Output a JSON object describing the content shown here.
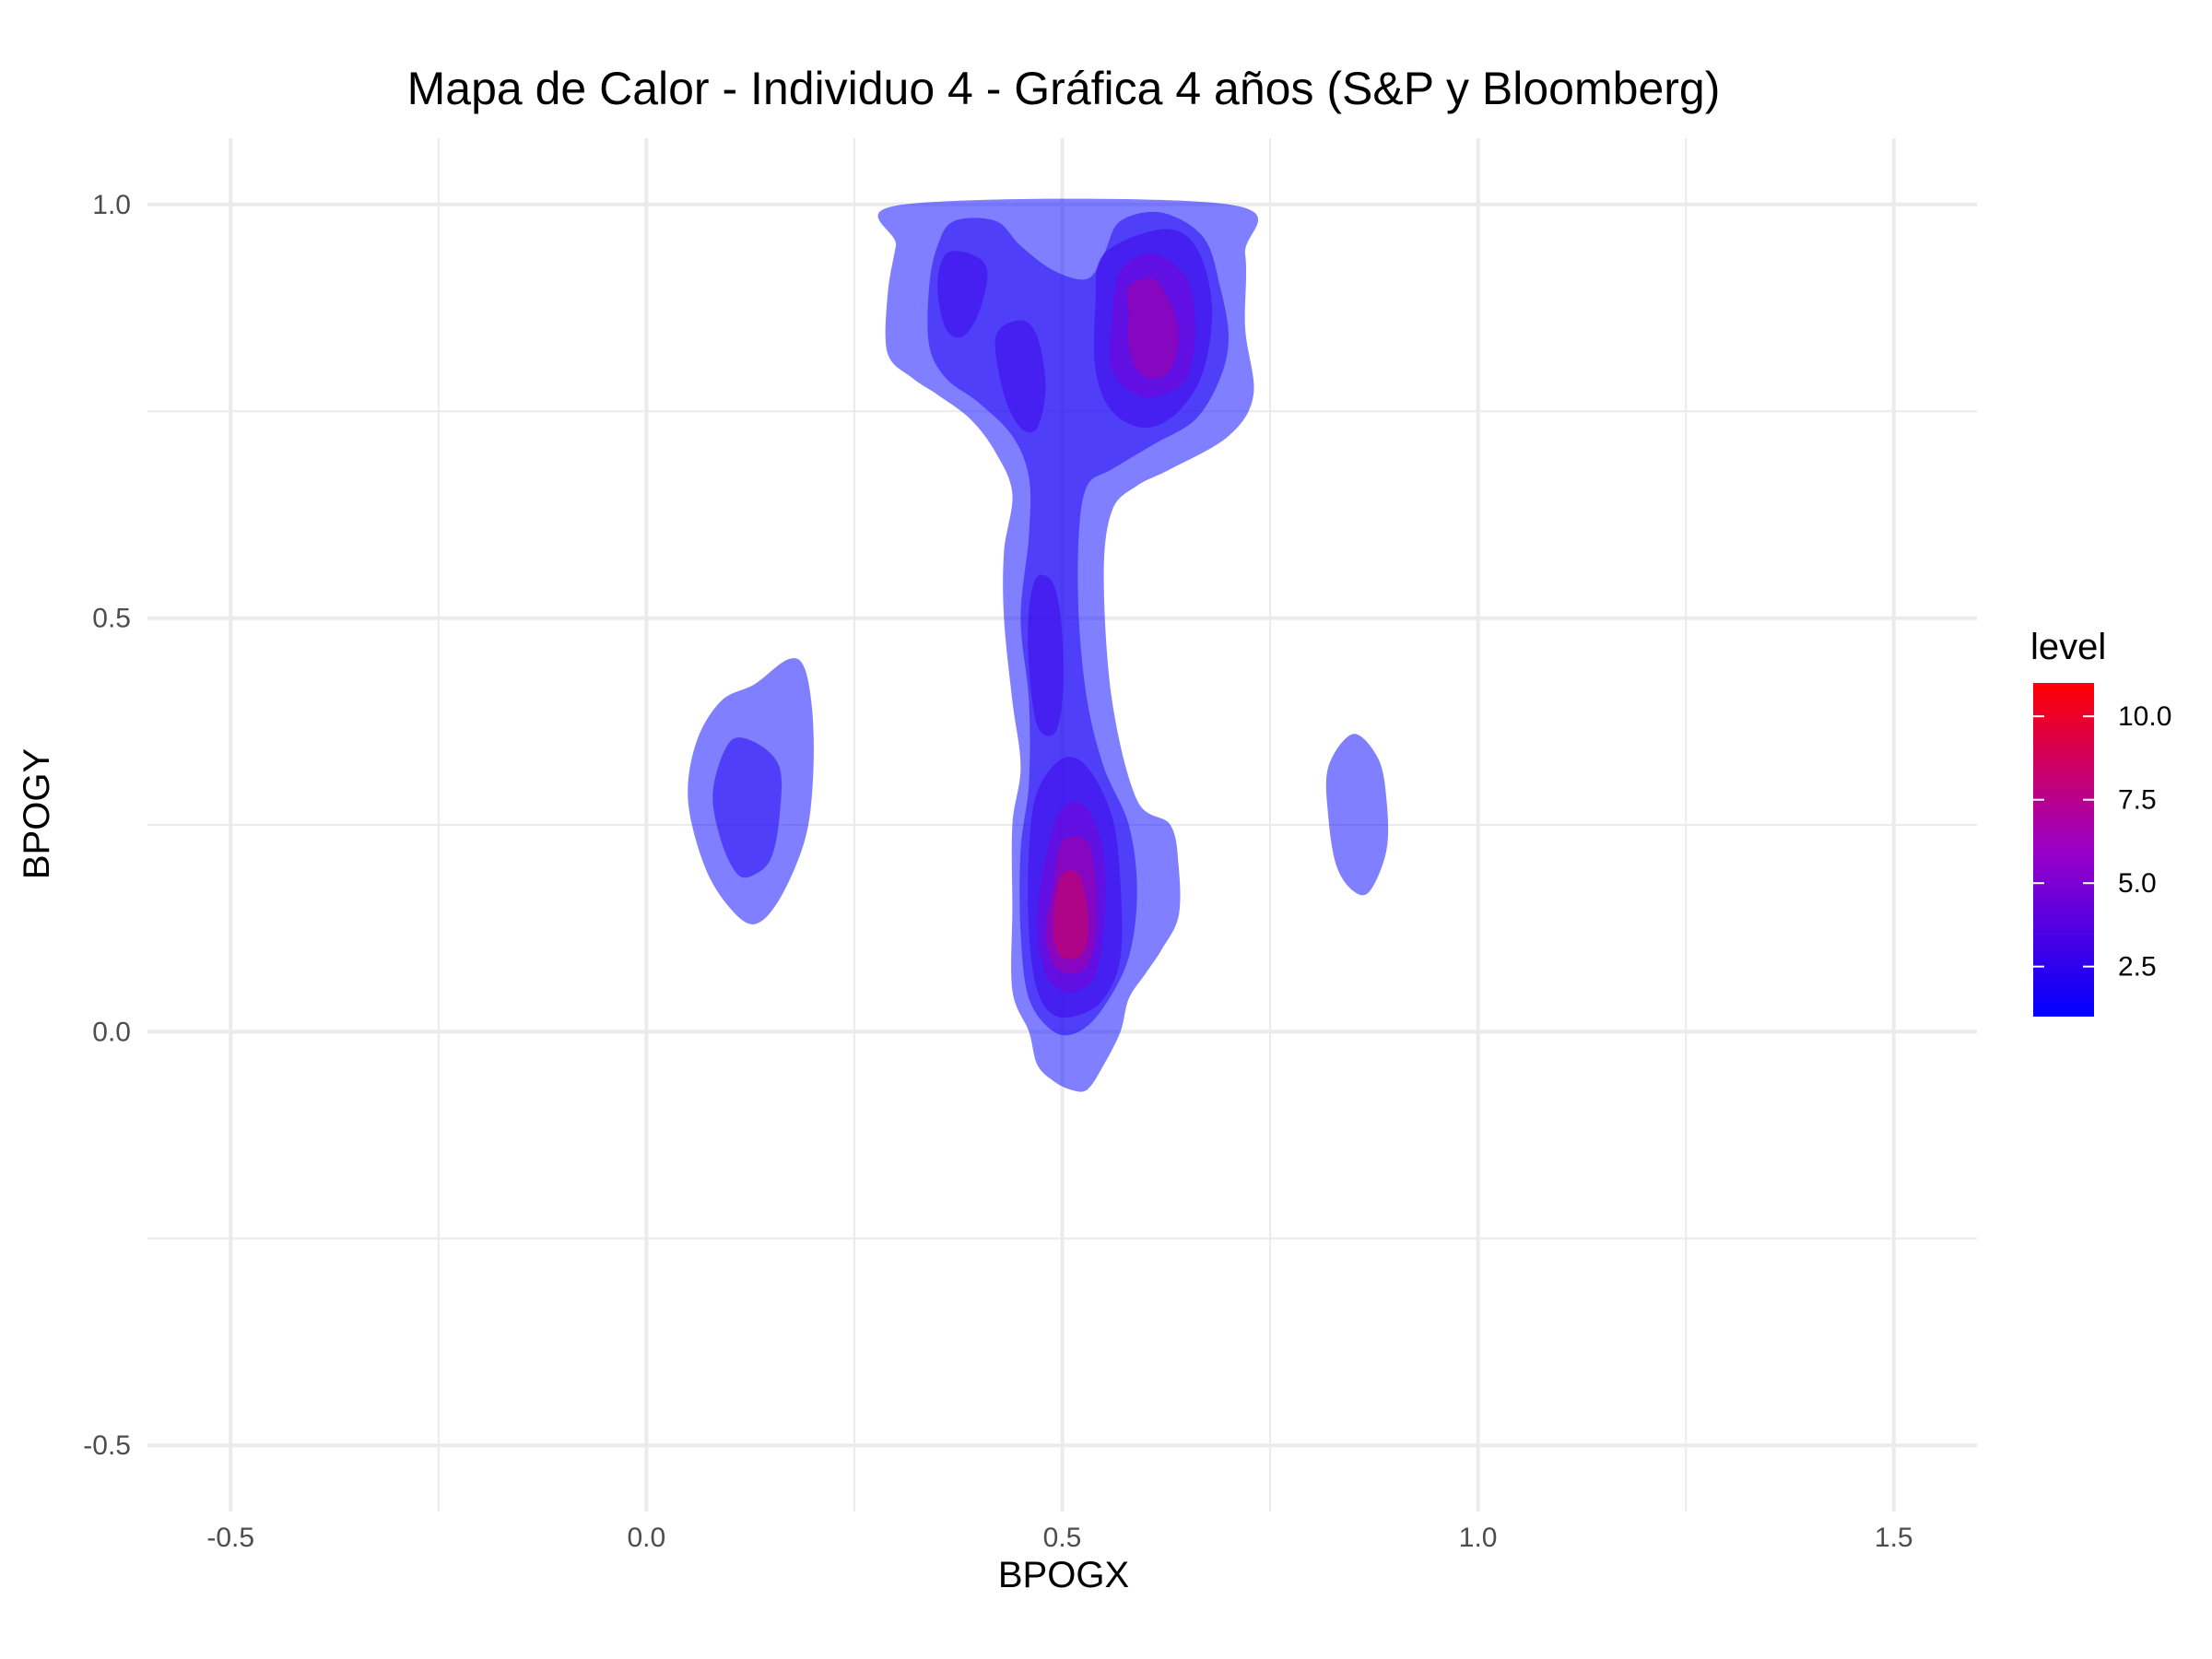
{
  "chart_data": {
    "type": "heatmap",
    "subtype": "2d-density-filled-contour",
    "title": "Mapa de Calor - Individuo 4 - Gráfica 4 años (S&P y Bloomberg)",
    "xlabel": "BPOGX",
    "ylabel": "BPOGY",
    "xlim": [
      -0.6,
      1.6
    ],
    "ylim": [
      -0.58,
      1.08
    ],
    "x_ticks": [
      -0.5,
      0.0,
      0.5,
      1.0,
      1.5
    ],
    "x_tick_labels": [
      "-0.5",
      "0.0",
      "0.5",
      "1.0",
      "1.5"
    ],
    "y_ticks": [
      -0.5,
      0.0,
      0.5,
      1.0
    ],
    "y_tick_labels": [
      "-0.5",
      "0.0",
      "0.5",
      "1.0"
    ],
    "grid": true,
    "legend": {
      "title": "level",
      "position": "right",
      "range": [
        1.0,
        11.0
      ],
      "ticks": [
        2.5,
        5.0,
        7.5,
        10.0
      ],
      "tick_labels": [
        "2.5",
        "5.0",
        "7.5",
        "10.0"
      ],
      "color_low": "#0000ff",
      "color_high": "#ff0000"
    },
    "density_peaks": [
      {
        "x": 0.51,
        "y": 0.14,
        "level": 11.0
      },
      {
        "x": 0.61,
        "y": 0.86,
        "level": 9.0
      },
      {
        "x": 0.39,
        "y": 0.89,
        "level": 3.5
      },
      {
        "x": 0.47,
        "y": 0.46,
        "level": 3.0
      },
      {
        "x": 0.12,
        "y": 0.28,
        "level": 2.2
      },
      {
        "x": 0.51,
        "y": 1.0,
        "level": 1.5
      },
      {
        "x": 0.86,
        "y": 0.27,
        "level": 1.0
      }
    ],
    "contours": [
      {
        "level": 1,
        "points": [
          [
            0.31,
            1.0
          ],
          [
            0.7,
            1.0
          ],
          [
            0.72,
            0.94
          ],
          [
            0.72,
            0.85
          ],
          [
            0.73,
            0.77
          ],
          [
            0.7,
            0.72
          ],
          [
            0.63,
            0.68
          ],
          [
            0.59,
            0.66
          ],
          [
            0.56,
            0.63
          ],
          [
            0.55,
            0.55
          ],
          [
            0.56,
            0.4
          ],
          [
            0.59,
            0.28
          ],
          [
            0.63,
            0.25
          ],
          [
            0.64,
            0.2
          ],
          [
            0.64,
            0.14
          ],
          [
            0.62,
            0.1
          ],
          [
            0.6,
            0.07
          ],
          [
            0.58,
            0.04
          ],
          [
            0.57,
            0.0
          ],
          [
            0.55,
            -0.04
          ],
          [
            0.53,
            -0.07
          ],
          [
            0.51,
            -0.07
          ],
          [
            0.49,
            -0.06
          ],
          [
            0.47,
            -0.04
          ],
          [
            0.46,
            0.0
          ],
          [
            0.44,
            0.05
          ],
          [
            0.44,
            0.15
          ],
          [
            0.44,
            0.25
          ],
          [
            0.45,
            0.32
          ],
          [
            0.44,
            0.4
          ],
          [
            0.43,
            0.5
          ],
          [
            0.43,
            0.58
          ],
          [
            0.44,
            0.65
          ],
          [
            0.42,
            0.7
          ],
          [
            0.39,
            0.74
          ],
          [
            0.35,
            0.77
          ],
          [
            0.32,
            0.79
          ],
          [
            0.29,
            0.82
          ],
          [
            0.29,
            0.89
          ],
          [
            0.3,
            0.95
          ]
        ]
      },
      {
        "level": 1,
        "points": [
          [
            0.17,
            0.45
          ],
          [
            0.13,
            0.42
          ],
          [
            0.09,
            0.4
          ],
          [
            0.06,
            0.35
          ],
          [
            0.05,
            0.28
          ],
          [
            0.07,
            0.2
          ],
          [
            0.1,
            0.15
          ],
          [
            0.13,
            0.13
          ],
          [
            0.16,
            0.16
          ],
          [
            0.19,
            0.23
          ],
          [
            0.2,
            0.3
          ],
          [
            0.2,
            0.38
          ],
          [
            0.19,
            0.44
          ]
        ]
      },
      {
        "level": 1,
        "points": [
          [
            0.85,
            0.36
          ],
          [
            0.82,
            0.32
          ],
          [
            0.82,
            0.26
          ],
          [
            0.83,
            0.2
          ],
          [
            0.85,
            0.17
          ],
          [
            0.87,
            0.17
          ],
          [
            0.89,
            0.22
          ],
          [
            0.89,
            0.28
          ],
          [
            0.88,
            0.33
          ]
        ]
      },
      {
        "level": 2,
        "points": [
          [
            0.37,
            0.98
          ],
          [
            0.42,
            0.98
          ],
          [
            0.45,
            0.95
          ],
          [
            0.49,
            0.92
          ],
          [
            0.53,
            0.91
          ],
          [
            0.55,
            0.94
          ],
          [
            0.57,
            0.98
          ],
          [
            0.62,
            0.99
          ],
          [
            0.67,
            0.96
          ],
          [
            0.69,
            0.9
          ],
          [
            0.7,
            0.84
          ],
          [
            0.69,
            0.79
          ],
          [
            0.66,
            0.74
          ],
          [
            0.61,
            0.71
          ],
          [
            0.56,
            0.68
          ],
          [
            0.53,
            0.66
          ],
          [
            0.52,
            0.6
          ],
          [
            0.52,
            0.5
          ],
          [
            0.53,
            0.4
          ],
          [
            0.55,
            0.32
          ],
          [
            0.58,
            0.25
          ],
          [
            0.59,
            0.17
          ],
          [
            0.58,
            0.09
          ],
          [
            0.55,
            0.03
          ],
          [
            0.52,
            0.0
          ],
          [
            0.49,
            0.0
          ],
          [
            0.46,
            0.04
          ],
          [
            0.45,
            0.12
          ],
          [
            0.45,
            0.22
          ],
          [
            0.46,
            0.3
          ],
          [
            0.46,
            0.4
          ],
          [
            0.45,
            0.5
          ],
          [
            0.46,
            0.6
          ],
          [
            0.46,
            0.67
          ],
          [
            0.44,
            0.72
          ],
          [
            0.4,
            0.76
          ],
          [
            0.36,
            0.79
          ],
          [
            0.34,
            0.83
          ],
          [
            0.34,
            0.9
          ],
          [
            0.35,
            0.95
          ]
        ]
      },
      {
        "level": 2,
        "points": [
          [
            0.1,
            0.35
          ],
          [
            0.13,
            0.35
          ],
          [
            0.16,
            0.32
          ],
          [
            0.16,
            0.26
          ],
          [
            0.15,
            0.21
          ],
          [
            0.13,
            0.19
          ],
          [
            0.11,
            0.19
          ],
          [
            0.09,
            0.23
          ],
          [
            0.08,
            0.29
          ]
        ]
      },
      {
        "level": 3,
        "points": [
          [
            0.36,
            0.94
          ],
          [
            0.39,
            0.94
          ],
          [
            0.41,
            0.92
          ],
          [
            0.4,
            0.87
          ],
          [
            0.38,
            0.84
          ],
          [
            0.36,
            0.85
          ],
          [
            0.35,
            0.9
          ]
        ]
      },
      {
        "level": 3,
        "points": [
          [
            0.42,
            0.84
          ],
          [
            0.45,
            0.86
          ],
          [
            0.47,
            0.84
          ],
          [
            0.48,
            0.78
          ],
          [
            0.47,
            0.73
          ],
          [
            0.45,
            0.73
          ],
          [
            0.43,
            0.77
          ]
        ]
      },
      {
        "level": 3,
        "points": [
          [
            0.47,
            0.55
          ],
          [
            0.49,
            0.54
          ],
          [
            0.5,
            0.48
          ],
          [
            0.5,
            0.4
          ],
          [
            0.49,
            0.36
          ],
          [
            0.47,
            0.37
          ],
          [
            0.46,
            0.44
          ],
          [
            0.46,
            0.51
          ]
        ]
      },
      {
        "level": 3,
        "points": [
          [
            0.55,
            0.94
          ],
          [
            0.62,
            0.97
          ],
          [
            0.66,
            0.95
          ],
          [
            0.68,
            0.88
          ],
          [
            0.67,
            0.8
          ],
          [
            0.64,
            0.75
          ],
          [
            0.6,
            0.73
          ],
          [
            0.56,
            0.75
          ],
          [
            0.54,
            0.8
          ],
          [
            0.54,
            0.88
          ]
        ]
      },
      {
        "level": 3,
        "points": [
          [
            0.5,
            0.33
          ],
          [
            0.53,
            0.32
          ],
          [
            0.56,
            0.26
          ],
          [
            0.57,
            0.18
          ],
          [
            0.57,
            0.09
          ],
          [
            0.55,
            0.04
          ],
          [
            0.52,
            0.02
          ],
          [
            0.49,
            0.02
          ],
          [
            0.47,
            0.05
          ],
          [
            0.46,
            0.12
          ],
          [
            0.46,
            0.22
          ],
          [
            0.47,
            0.29
          ]
        ]
      },
      {
        "level": 5,
        "points": [
          [
            0.57,
            0.92
          ],
          [
            0.61,
            0.94
          ],
          [
            0.65,
            0.91
          ],
          [
            0.66,
            0.85
          ],
          [
            0.65,
            0.79
          ],
          [
            0.62,
            0.77
          ],
          [
            0.59,
            0.77
          ],
          [
            0.56,
            0.8
          ],
          [
            0.56,
            0.86
          ]
        ]
      },
      {
        "level": 5,
        "points": [
          [
            0.5,
            0.27
          ],
          [
            0.53,
            0.27
          ],
          [
            0.55,
            0.21
          ],
          [
            0.55,
            0.13
          ],
          [
            0.54,
            0.07
          ],
          [
            0.52,
            0.05
          ],
          [
            0.5,
            0.05
          ],
          [
            0.48,
            0.07
          ],
          [
            0.47,
            0.13
          ],
          [
            0.48,
            0.21
          ]
        ]
      },
      {
        "level": 7,
        "points": [
          [
            0.58,
            0.9
          ],
          [
            0.61,
            0.91
          ],
          [
            0.63,
            0.88
          ],
          [
            0.64,
            0.84
          ],
          [
            0.63,
            0.8
          ],
          [
            0.61,
            0.79
          ],
          [
            0.59,
            0.8
          ],
          [
            0.58,
            0.83
          ],
          [
            0.58,
            0.87
          ]
        ]
      },
      {
        "level": 7,
        "points": [
          [
            0.5,
            0.23
          ],
          [
            0.53,
            0.23
          ],
          [
            0.54,
            0.18
          ],
          [
            0.54,
            0.12
          ],
          [
            0.53,
            0.08
          ],
          [
            0.51,
            0.07
          ],
          [
            0.49,
            0.08
          ],
          [
            0.48,
            0.12
          ],
          [
            0.49,
            0.18
          ]
        ]
      },
      {
        "level": 9,
        "points": [
          [
            0.5,
            0.19
          ],
          [
            0.52,
            0.19
          ],
          [
            0.53,
            0.15
          ],
          [
            0.53,
            0.11
          ],
          [
            0.52,
            0.09
          ],
          [
            0.5,
            0.09
          ],
          [
            0.49,
            0.11
          ],
          [
            0.49,
            0.15
          ]
        ]
      }
    ]
  }
}
